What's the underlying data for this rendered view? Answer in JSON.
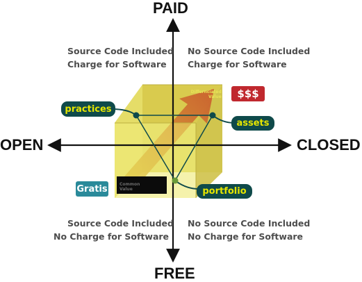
{
  "axes": {
    "top": "PAID",
    "bottom": "FREE",
    "left": "OPEN",
    "right": "CLOSED"
  },
  "quadrants": {
    "top_left": [
      "Source Code Included",
      "Charge for Software"
    ],
    "top_right": [
      "No Source Code Included",
      "Charge for Software"
    ],
    "bottom_left": [
      "Source Code Included",
      "No Charge for Software"
    ],
    "bottom_right": [
      "No Source Code Included",
      "No Charge for Software"
    ]
  },
  "cube_labels": {
    "differentiated": [
      "Differnciated",
      "Value"
    ],
    "common": [
      "Common",
      "Value"
    ]
  },
  "callouts": {
    "practices": "practices",
    "assets": "assets",
    "portfolio": "portfolio"
  },
  "tags": {
    "paid": "$$$",
    "free": "Gratis"
  },
  "colors": {
    "cube_face": "#e8e356",
    "cube_dark": "#b8a93a",
    "pill_bg": "#0f4a4a",
    "pill_text": "#e6e600",
    "money_tag": "#c0282e",
    "gratis_tag": "#2a8a9a",
    "quadrant_text": "#4d4d4d",
    "axis_text": "#111111"
  }
}
